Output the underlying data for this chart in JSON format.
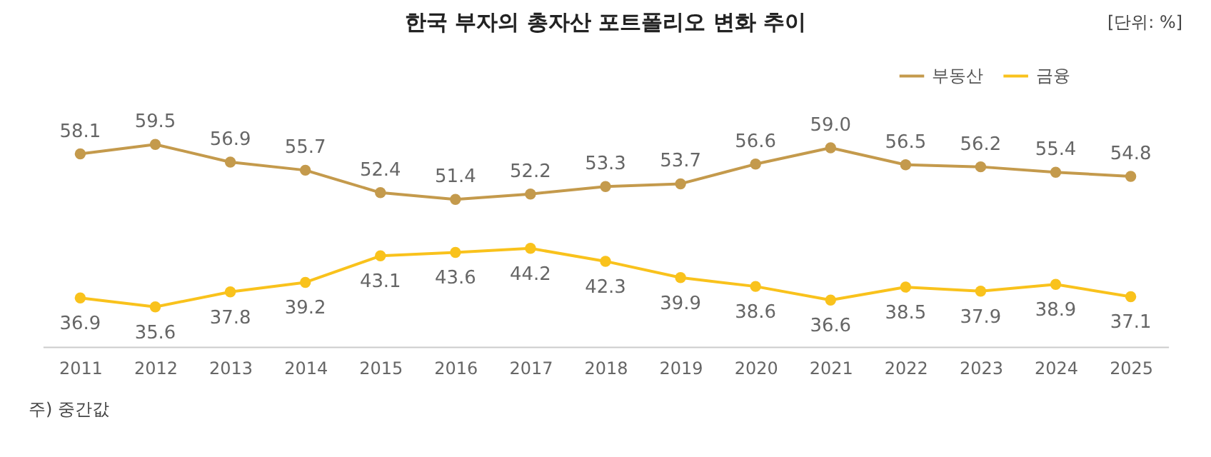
{
  "chart_data": {
    "type": "line",
    "title": "한국 부자의 총자산 포트폴리오 변화 추이",
    "categories": [
      "2011",
      "2012",
      "2013",
      "2014",
      "2015",
      "2016",
      "2017",
      "2018",
      "2019",
      "2020",
      "2021",
      "2022",
      "2023",
      "2024",
      "2025"
    ],
    "series": [
      {
        "name": "부동산",
        "color": "#c49a4c",
        "values": [
          58.1,
          59.5,
          56.9,
          55.7,
          52.4,
          51.4,
          52.2,
          53.3,
          53.7,
          56.6,
          59.0,
          56.5,
          56.2,
          55.4,
          54.8
        ],
        "value_labels": [
          "58.1",
          "59.5",
          "56.9",
          "55.7",
          "52.4",
          "51.4",
          "52.2",
          "53.3",
          "53.7",
          "56.6",
          "59.0",
          "56.5",
          "56.2",
          "55.4",
          "54.8"
        ]
      },
      {
        "name": "금융",
        "color": "#f9c21c",
        "values": [
          36.9,
          35.6,
          37.8,
          39.2,
          43.1,
          43.6,
          44.2,
          42.3,
          39.9,
          38.6,
          36.6,
          38.5,
          37.9,
          38.9,
          37.1
        ],
        "value_labels": [
          "36.9",
          "35.6",
          "37.8",
          "39.2",
          "43.1",
          "43.6",
          "44.2",
          "42.3",
          "39.9",
          "38.6",
          "36.6",
          "38.5",
          "37.9",
          "38.9",
          "37.1"
        ]
      }
    ],
    "marker": "circle",
    "line_style": "solid",
    "grid": false,
    "legend": "top right",
    "annotations": [
      "[단위: %]",
      "주) 중간값"
    ]
  }
}
